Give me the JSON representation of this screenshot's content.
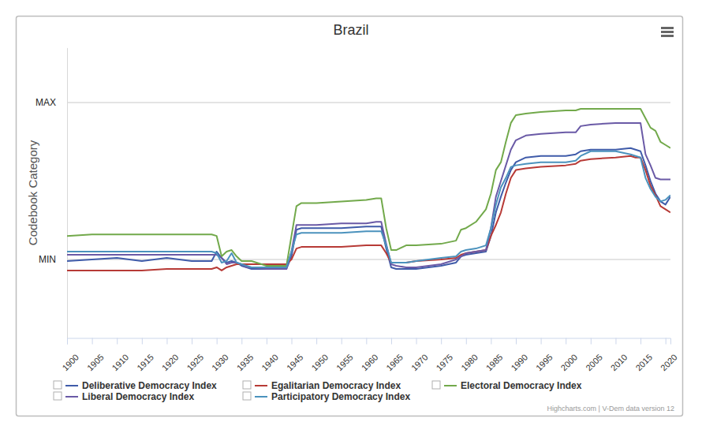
{
  "chart_data": {
    "type": "line",
    "title": "Brazil",
    "y_label": "Codebook Category",
    "credits": "Highcharts.com | V-Dem data version 12",
    "legend": "bottom",
    "grid": true,
    "xlim": [
      1900,
      2021
    ],
    "xticks": [
      1900,
      1905,
      1910,
      1915,
      1920,
      1925,
      1930,
      1935,
      1940,
      1945,
      1950,
      1955,
      1960,
      1965,
      1970,
      1975,
      1980,
      1985,
      1990,
      1995,
      2000,
      2005,
      2010,
      2015,
      2020
    ],
    "ylim": [
      -0.5,
      1.35
    ],
    "yticks": [
      {
        "value": 0,
        "label": "MIN"
      },
      {
        "value": 1,
        "label": "MAX"
      }
    ],
    "x": [
      1900,
      1905,
      1910,
      1915,
      1920,
      1925,
      1929,
      1930,
      1931,
      1932,
      1933,
      1934,
      1935,
      1936,
      1937,
      1940,
      1944,
      1945,
      1946,
      1947,
      1950,
      1955,
      1960,
      1962,
      1963,
      1964,
      1965,
      1966,
      1968,
      1970,
      1975,
      1978,
      1979,
      1980,
      1982,
      1984,
      1985,
      1986,
      1987,
      1988,
      1989,
      1990,
      1992,
      1995,
      2000,
      2002,
      2003,
      2005,
      2010,
      2013,
      2014,
      2015,
      2016,
      2017,
      2018,
      2019,
      2020,
      2021
    ],
    "series": [
      {
        "name": "Deliberative Democracy Index",
        "color": "#3f5ba9",
        "values": [
          -0.01,
          0,
          0.01,
          -0.01,
          0.01,
          -0.01,
          -0.01,
          0.05,
          0.01,
          -0.02,
          -0.01,
          -0.02,
          -0.04,
          -0.05,
          -0.06,
          -0.06,
          -0.06,
          0.02,
          0.19,
          0.2,
          0.2,
          0.2,
          0.21,
          0.21,
          0.21,
          0.07,
          -0.05,
          -0.06,
          -0.06,
          -0.06,
          -0.04,
          -0.02,
          0.02,
          0.03,
          0.04,
          0.05,
          0.15,
          0.3,
          0.4,
          0.49,
          0.57,
          0.62,
          0.65,
          0.66,
          0.66,
          0.67,
          0.69,
          0.7,
          0.7,
          0.71,
          0.7,
          0.69,
          0.6,
          0.5,
          0.42,
          0.37,
          0.35,
          0.4
        ]
      },
      {
        "name": "Egalitarian Democracy Index",
        "color": "#b73a36",
        "values": [
          -0.07,
          -0.07,
          -0.07,
          -0.07,
          -0.06,
          -0.06,
          -0.06,
          -0.05,
          -0.07,
          -0.05,
          -0.04,
          -0.03,
          -0.03,
          -0.03,
          -0.03,
          -0.03,
          -0.03,
          0,
          0.07,
          0.08,
          0.08,
          0.08,
          0.09,
          0.09,
          0.09,
          0.04,
          -0.02,
          -0.02,
          -0.02,
          -0.01,
          0,
          0.01,
          0.03,
          0.04,
          0.05,
          0.06,
          0.15,
          0.22,
          0.3,
          0.42,
          0.52,
          0.57,
          0.58,
          0.59,
          0.6,
          0.61,
          0.63,
          0.64,
          0.65,
          0.66,
          0.65,
          0.65,
          0.57,
          0.47,
          0.41,
          0.34,
          0.32,
          0.3
        ]
      },
      {
        "name": "Electoral Democracy Index",
        "color": "#72a94b",
        "values": [
          0.15,
          0.16,
          0.16,
          0.16,
          0.16,
          0.16,
          0.16,
          0.15,
          0.02,
          0.05,
          0.06,
          0.02,
          -0.01,
          -0.01,
          -0.01,
          -0.04,
          -0.04,
          0.15,
          0.34,
          0.36,
          0.36,
          0.37,
          0.38,
          0.39,
          0.39,
          0.2,
          0.06,
          0.06,
          0.09,
          0.09,
          0.1,
          0.12,
          0.19,
          0.2,
          0.24,
          0.32,
          0.42,
          0.57,
          0.62,
          0.75,
          0.87,
          0.92,
          0.93,
          0.94,
          0.95,
          0.95,
          0.96,
          0.96,
          0.96,
          0.96,
          0.96,
          0.96,
          0.9,
          0.84,
          0.82,
          0.75,
          0.73,
          0.71
        ]
      },
      {
        "name": "Liberal Democracy Index",
        "color": "#6a5aa6",
        "values": [
          0.03,
          0.03,
          0.03,
          0.03,
          0.03,
          0.03,
          0.03,
          0.03,
          0.01,
          -0.03,
          -0.02,
          -0.02,
          -0.03,
          -0.05,
          -0.05,
          -0.06,
          -0.06,
          0.05,
          0.22,
          0.22,
          0.22,
          0.23,
          0.23,
          0.24,
          0.24,
          0.1,
          -0.03,
          -0.04,
          -0.05,
          -0.05,
          -0.03,
          0,
          0.02,
          0.04,
          0.05,
          0.06,
          0.2,
          0.4,
          0.5,
          0.6,
          0.7,
          0.76,
          0.79,
          0.8,
          0.81,
          0.81,
          0.85,
          0.86,
          0.87,
          0.87,
          0.87,
          0.87,
          0.67,
          0.6,
          0.52,
          0.51,
          0.51,
          0.51
        ]
      },
      {
        "name": "Participatory Democracy Index",
        "color": "#4b92bd",
        "values": [
          0.05,
          0.05,
          0.05,
          0.05,
          0.05,
          0.05,
          0.05,
          0.04,
          -0.02,
          -0.01,
          0.04,
          -0.02,
          -0.03,
          -0.04,
          -0.05,
          -0.05,
          -0.05,
          0.05,
          0.16,
          0.17,
          0.17,
          0.17,
          0.18,
          0.18,
          0.18,
          0.09,
          -0.02,
          -0.02,
          -0.02,
          -0.01,
          0.01,
          0.02,
          0.05,
          0.06,
          0.07,
          0.09,
          0.2,
          0.35,
          0.46,
          0.52,
          0.59,
          0.6,
          0.61,
          0.62,
          0.62,
          0.63,
          0.66,
          0.69,
          0.69,
          0.67,
          0.66,
          0.65,
          0.52,
          0.45,
          0.4,
          0.37,
          0.38,
          0.41
        ]
      }
    ]
  }
}
